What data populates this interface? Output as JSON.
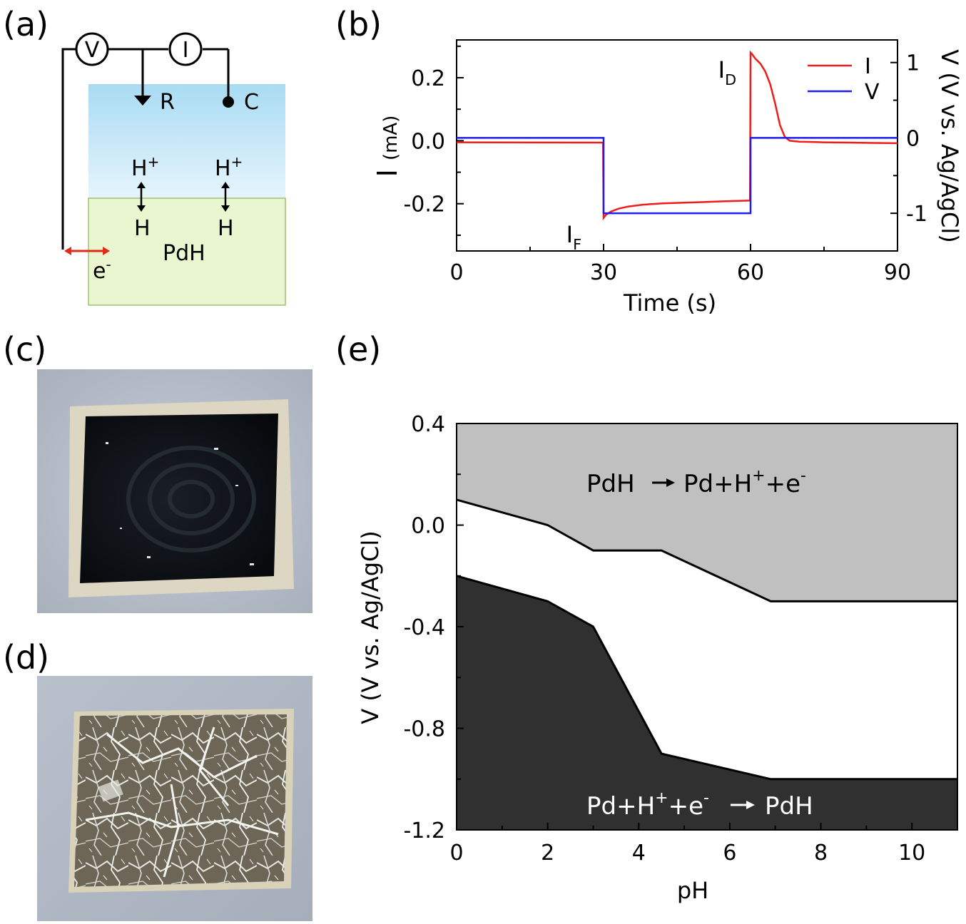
{
  "colors": {
    "current": "#ee1c1c",
    "voltage": "#1d1df0",
    "electrolyte_top": "#a9dbf3",
    "electrolyte_bottom": "#e6f5fc",
    "film": "#e9f6cf",
    "film_border": "#9dc071",
    "arrow": "#e02a1a",
    "pdh_region": "#c0c0c0",
    "pd_region": "#303030"
  },
  "panels": {
    "a": {
      "label": "(a)"
    },
    "b": {
      "label": "(b)"
    },
    "c": {
      "label": "(c)"
    },
    "d": {
      "label": "(d)"
    },
    "e": {
      "label": "(e)"
    }
  },
  "diagram": {
    "meter_v": "V",
    "meter_i": "I",
    "ref_label": "R",
    "counter_label": "C",
    "proton_left": "H",
    "proton_right": "H",
    "plus": "+",
    "atom_left": "H",
    "atom_right": "H",
    "film_label": "PdH",
    "electron": "e",
    "minus": "-"
  },
  "chart_data": [
    {
      "type": "line",
      "panel": "b",
      "xlabel": "Time (s)",
      "ylabel_main": "I",
      "ylabel_unit": "(mA)",
      "y2label": "V (V vs. Ag/AgCl)",
      "xlim": [
        0,
        90
      ],
      "ylim": [
        -0.35,
        0.32
      ],
      "y2lim": [
        -1.5,
        1.3
      ],
      "x_ticks": [
        "0",
        "30",
        "60",
        "90"
      ],
      "x_tick_values": [
        0,
        30,
        60,
        90
      ],
      "y_ticks": [
        "0.2",
        "0.0",
        "-0.2"
      ],
      "y_tick_values": [
        0.2,
        0.0,
        -0.2
      ],
      "y2_ticks": [
        "1",
        "0",
        "-1"
      ],
      "y2_tick_values": [
        1,
        0,
        -1
      ],
      "legend_position": "top-right",
      "series": [
        {
          "name": "I",
          "axis": "left",
          "x": [
            0,
            29.9,
            30.0,
            30.5,
            31.5,
            33,
            35,
            38,
            42,
            46,
            50,
            55,
            59.9,
            60.0,
            60.3,
            61,
            62,
            63,
            64,
            65,
            66,
            67,
            68,
            70,
            75,
            80,
            85,
            90
          ],
          "y": [
            -0.005,
            -0.006,
            -0.245,
            -0.235,
            -0.225,
            -0.216,
            -0.209,
            -0.203,
            -0.199,
            -0.197,
            -0.195,
            -0.192,
            -0.19,
            0.28,
            0.275,
            0.26,
            0.245,
            0.22,
            0.18,
            0.12,
            0.05,
            0.012,
            0.0,
            -0.003,
            -0.005,
            -0.006,
            -0.007,
            -0.008
          ]
        },
        {
          "name": "V",
          "axis": "right",
          "x": [
            0,
            30,
            30,
            60,
            60,
            90
          ],
          "y": [
            0,
            0,
            -1,
            -1,
            0,
            0
          ]
        }
      ],
      "annotations": [
        {
          "text": "I",
          "sub": "D",
          "x": 59.8,
          "y": 0.2
        },
        {
          "text": "I",
          "sub": "F",
          "x": 28.2,
          "y": -0.3
        }
      ]
    },
    {
      "type": "area",
      "panel": "e",
      "xlabel": "pH",
      "ylabel": "V (V vs. Ag/AgCl)",
      "xlim": [
        0,
        11
      ],
      "ylim": [
        -1.2,
        0.4
      ],
      "x_ticks": [
        "0",
        "2",
        "4",
        "6",
        "8",
        "10"
      ],
      "x_tick_values": [
        0,
        2,
        4,
        6,
        8,
        10
      ],
      "y_ticks": [
        "0.4",
        "0.0",
        "-0.4",
        "-0.8",
        "-1.2"
      ],
      "y_tick_values": [
        0.4,
        0.0,
        -0.4,
        -0.8,
        -1.2
      ],
      "upper_boundary": {
        "x": [
          0,
          2,
          3,
          4.5,
          6.9,
          11
        ],
        "y": [
          0.1,
          0.0,
          -0.1,
          -0.1,
          -0.3,
          -0.3
        ]
      },
      "lower_boundary": {
        "x": [
          0,
          2,
          3,
          4.5,
          6.9,
          11
        ],
        "y": [
          -0.2,
          -0.3,
          -0.4,
          -0.9,
          -1.0,
          -1.0
        ]
      },
      "regions": {
        "top": {
          "lhs": "PdH",
          "rhs_pd": "Pd+H",
          "plus": "+",
          "rhs_e": "+e",
          "minus": "-"
        },
        "bottom": {
          "lhs_pd": "Pd+H",
          "plus": "+",
          "lhs_e": "+e",
          "minus": "-",
          "rhs": "PdH"
        }
      }
    }
  ],
  "photos": {
    "c": {
      "name": "as-deposited Pd film photo"
    },
    "d": {
      "name": "cracked Pd film photo"
    }
  }
}
